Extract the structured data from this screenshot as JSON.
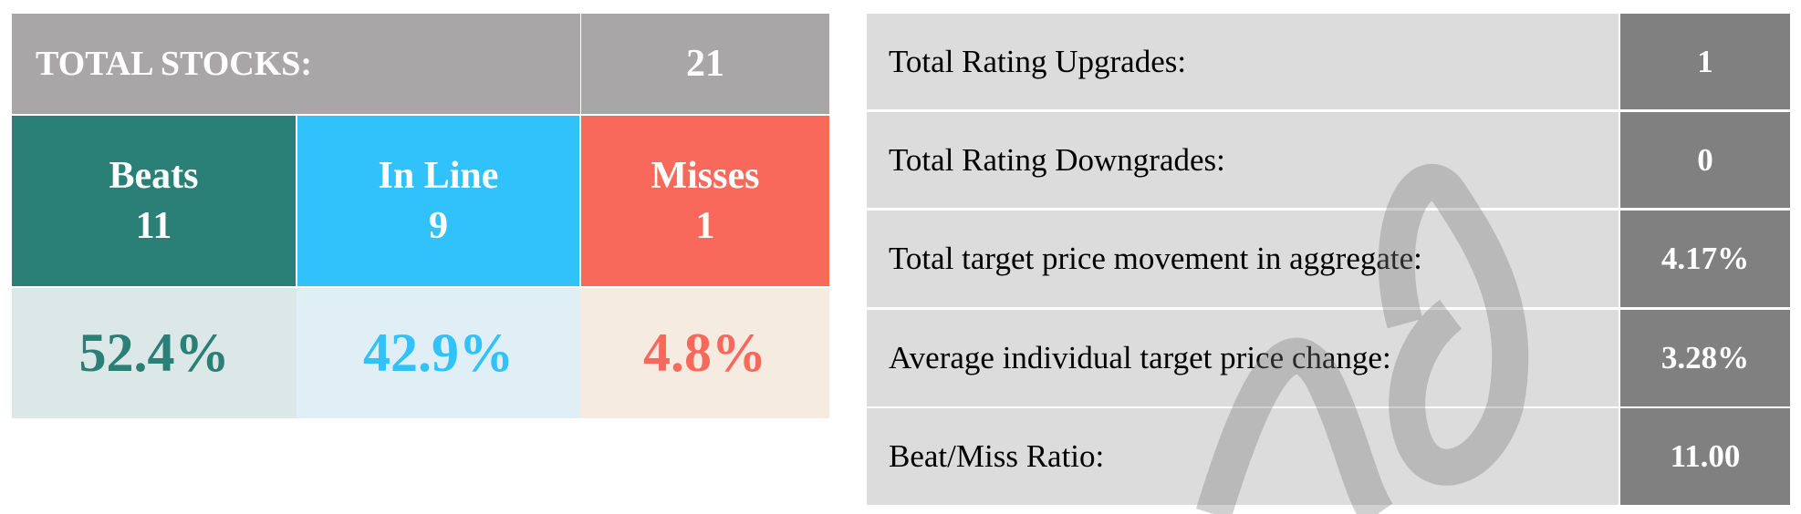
{
  "summary": {
    "total_label": "TOTAL STOCKS:",
    "total_value": "21",
    "categories": [
      {
        "label": "Beats",
        "count": "11",
        "percent": "52.4%",
        "color": "#2a7f76",
        "tint": "#dbe8e7"
      },
      {
        "label": "In Line",
        "count": "9",
        "percent": "42.9%",
        "color": "#31c1fb",
        "tint": "#e0eff6"
      },
      {
        "label": "Misses",
        "count": "1",
        "percent": "4.8%",
        "color": "#f8695b",
        "tint": "#f5ebe0"
      }
    ],
    "header_bg": "#a8a6a7"
  },
  "metrics": [
    {
      "label": "Total Rating Upgrades:",
      "value": "1"
    },
    {
      "label": "Total Rating Downgrades:",
      "value": "0"
    },
    {
      "label": "Total target price movement in aggregate:",
      "value": "4.17%"
    },
    {
      "label": "Average individual target price change:",
      "value": "3.28%"
    },
    {
      "label": "Beat/Miss Ratio:",
      "value": "11.00"
    }
  ]
}
